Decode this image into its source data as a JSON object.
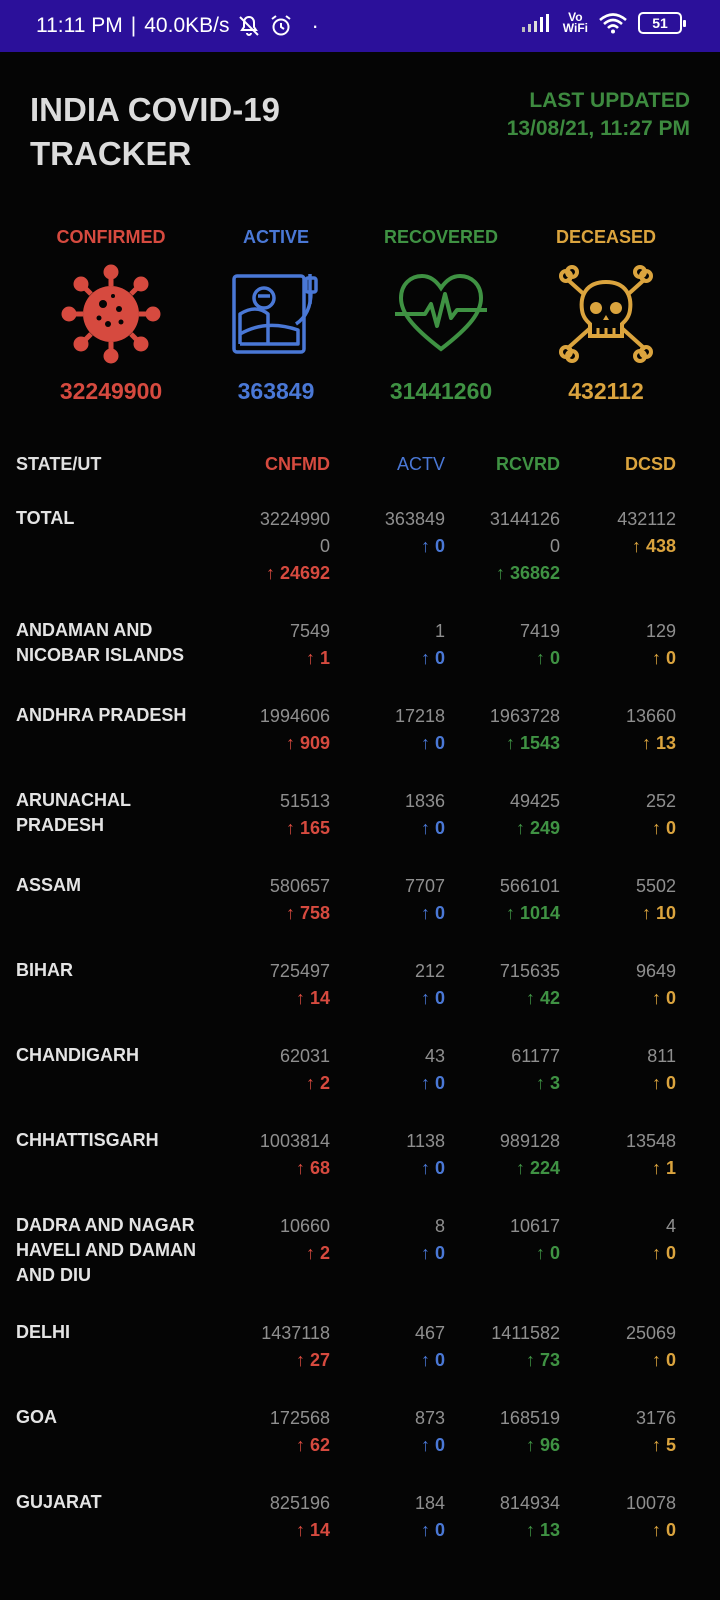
{
  "status_bar": {
    "time": "11:11 PM",
    "speed": "40.0KB/s",
    "vo": "Vo",
    "wifi": "WiFi",
    "battery": "51"
  },
  "header": {
    "title_line1": "INDIA COVID-19",
    "title_line2": "TRACKER",
    "updated_label": "LAST UPDATED",
    "updated_time": "13/08/21, 11:27 PM"
  },
  "summary": {
    "confirmed": {
      "label": "CONFIRMED",
      "value": "32249900",
      "icon": "virus-icon"
    },
    "active": {
      "label": "ACTIVE",
      "value": "363849",
      "icon": "hospital-bed-icon"
    },
    "recovered": {
      "label": "RECOVERED",
      "value": "31441260",
      "icon": "heartbeat-icon"
    },
    "deceased": {
      "label": "DECEASED",
      "value": "432112",
      "icon": "skull-icon"
    }
  },
  "table": {
    "headers": {
      "state": "STATE/UT",
      "cnfmd": "CNFMD",
      "actv": "ACTV",
      "rcvrd": "RCVRD",
      "dcsd": "DCSD"
    },
    "rows": [
      {
        "state": "TOTAL",
        "cnfmd": "3224990\n0",
        "cnfmd_delta": "↑ 24692",
        "actv": "363849",
        "actv_delta": "↑ 0",
        "rcvrd": "3144126\n0",
        "rcvrd_delta": "↑ 36862",
        "dcsd": "432112",
        "dcsd_delta": "↑ 438"
      },
      {
        "state": "ANDAMAN AND NICOBAR ISLANDS",
        "cnfmd": "7549",
        "cnfmd_delta": "↑ 1",
        "actv": "1",
        "actv_delta": "↑ 0",
        "rcvrd": "7419",
        "rcvrd_delta": "↑ 0",
        "dcsd": "129",
        "dcsd_delta": "↑ 0"
      },
      {
        "state": "ANDHRA PRADESH",
        "cnfmd": "1994606",
        "cnfmd_delta": "↑ 909",
        "actv": "17218",
        "actv_delta": "↑ 0",
        "rcvrd": "1963728",
        "rcvrd_delta": "↑ 1543",
        "dcsd": "13660",
        "dcsd_delta": "↑ 13"
      },
      {
        "state": "ARUNACHAL PRADESH",
        "cnfmd": "51513",
        "cnfmd_delta": "↑ 165",
        "actv": "1836",
        "actv_delta": "↑ 0",
        "rcvrd": "49425",
        "rcvrd_delta": "↑ 249",
        "dcsd": "252",
        "dcsd_delta": "↑ 0"
      },
      {
        "state": "ASSAM",
        "cnfmd": "580657",
        "cnfmd_delta": "↑ 758",
        "actv": "7707",
        "actv_delta": "↑ 0",
        "rcvrd": "566101",
        "rcvrd_delta": "↑ 1014",
        "dcsd": "5502",
        "dcsd_delta": "↑ 10"
      },
      {
        "state": "BIHAR",
        "cnfmd": "725497",
        "cnfmd_delta": "↑ 14",
        "actv": "212",
        "actv_delta": "↑ 0",
        "rcvrd": "715635",
        "rcvrd_delta": "↑ 42",
        "dcsd": "9649",
        "dcsd_delta": "↑ 0"
      },
      {
        "state": "CHANDIGARH",
        "cnfmd": "62031",
        "cnfmd_delta": "↑ 2",
        "actv": "43",
        "actv_delta": "↑ 0",
        "rcvrd": "61177",
        "rcvrd_delta": "↑ 3",
        "dcsd": "811",
        "dcsd_delta": "↑ 0"
      },
      {
        "state": "CHHATTISGARH",
        "cnfmd": "1003814",
        "cnfmd_delta": "↑ 68",
        "actv": "1138",
        "actv_delta": "↑ 0",
        "rcvrd": "989128",
        "rcvrd_delta": "↑ 224",
        "dcsd": "13548",
        "dcsd_delta": "↑ 1"
      },
      {
        "state": "DADRA AND NAGAR HAVELI AND DAMAN AND DIU",
        "cnfmd": "10660",
        "cnfmd_delta": "↑ 2",
        "actv": "8",
        "actv_delta": "↑ 0",
        "rcvrd": "10617",
        "rcvrd_delta": "↑ 0",
        "dcsd": "4",
        "dcsd_delta": "↑ 0"
      },
      {
        "state": "DELHI",
        "cnfmd": "1437118",
        "cnfmd_delta": "↑ 27",
        "actv": "467",
        "actv_delta": "↑ 0",
        "rcvrd": "1411582",
        "rcvrd_delta": "↑ 73",
        "dcsd": "25069",
        "dcsd_delta": "↑ 0"
      },
      {
        "state": "GOA",
        "cnfmd": "172568",
        "cnfmd_delta": "↑ 62",
        "actv": "873",
        "actv_delta": "↑ 0",
        "rcvrd": "168519",
        "rcvrd_delta": "↑ 96",
        "dcsd": "3176",
        "dcsd_delta": "↑ 5"
      },
      {
        "state": "GUJARAT",
        "cnfmd": "825196",
        "cnfmd_delta": "↑ 14",
        "actv": "184",
        "actv_delta": "↑ 0",
        "rcvrd": "814934",
        "rcvrd_delta": "↑ 13",
        "dcsd": "10078",
        "dcsd_delta": "↑ 0"
      }
    ]
  },
  "colors": {
    "status_bar": "#2b109a",
    "confirmed": "#d64a3f",
    "active": "#4a78d6",
    "recovered": "#3f9243",
    "deceased": "#dba43e"
  }
}
